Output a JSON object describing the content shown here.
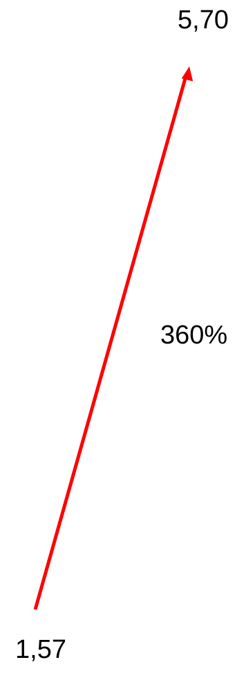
{
  "diagram": {
    "end_value": "5,70",
    "start_value": "1,57",
    "change_label": "360%",
    "arrow_color": "#ff0000"
  }
}
